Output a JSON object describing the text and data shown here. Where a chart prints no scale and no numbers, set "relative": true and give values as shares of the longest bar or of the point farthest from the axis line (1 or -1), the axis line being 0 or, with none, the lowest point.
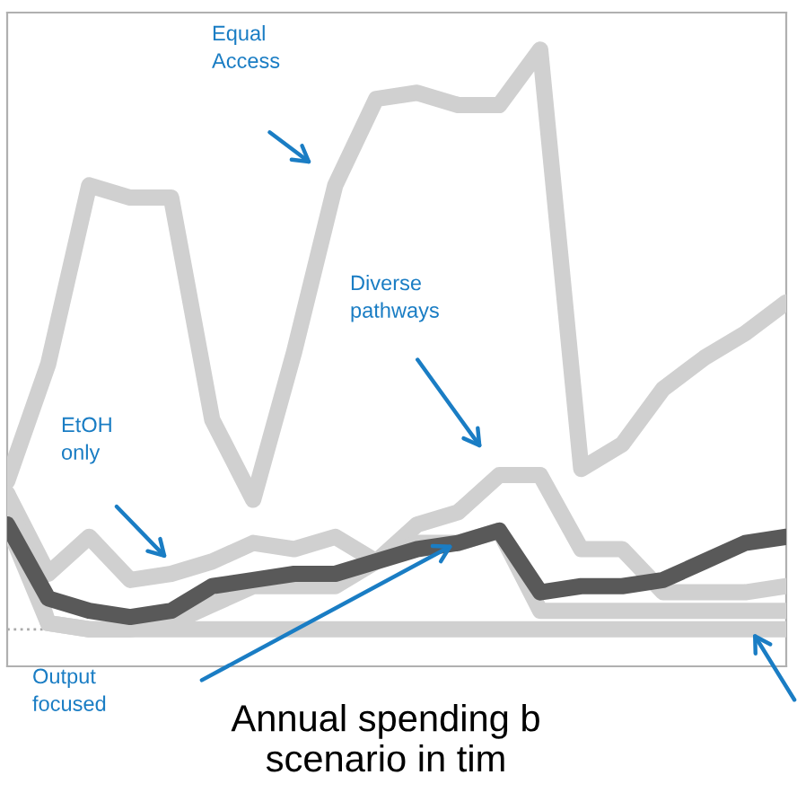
{
  "chart_data": {
    "type": "line",
    "relative": true,
    "title": "Annual spending b\nscenario in tim",
    "categories": [
      null,
      null,
      null,
      null,
      null,
      null,
      null,
      null,
      null,
      null,
      null,
      null,
      null,
      null,
      null,
      null,
      null,
      null,
      null,
      null
    ],
    "series": [
      {
        "color": "#d0d0d0",
        "values": [
          0.3,
          0.49,
          0.78,
          0.76,
          0.76,
          0.4,
          0.27,
          0.51,
          0.78,
          0.92,
          0.93,
          0.91,
          0.91,
          1.0,
          0.32,
          0.36,
          0.45,
          0.5,
          0.54,
          0.59
        ]
      },
      {
        "color": "#d0d0d0",
        "values": [
          0.28,
          0.15,
          0.21,
          0.14,
          0.15,
          0.17,
          0.2,
          0.19,
          0.21,
          0.17,
          0.23,
          0.25,
          0.31,
          0.31,
          0.19,
          0.19,
          0.12,
          0.12,
          0.12,
          0.13
        ]
      },
      {
        "color": "#d0d0d0",
        "values": [
          0.23,
          0.07,
          0.06,
          0.06,
          0.07,
          0.1,
          0.13,
          0.13,
          0.13,
          0.17,
          0.2,
          0.2,
          0.22,
          0.09,
          0.09,
          0.09,
          0.09,
          0.09,
          0.09,
          0.09
        ]
      },
      {
        "color": "#d0d0d0",
        "values": [
          0.28,
          0.07,
          0.06,
          0.06,
          0.06,
          0.06,
          0.06,
          0.06,
          0.06,
          0.06,
          0.06,
          0.06,
          0.06,
          0.06,
          0.06,
          0.06,
          0.06,
          0.06,
          0.06,
          0.06
        ]
      },
      {
        "color": "#595959",
        "values": [
          0.23,
          0.11,
          0.09,
          0.08,
          0.09,
          0.13,
          0.14,
          0.15,
          0.15,
          0.17,
          0.19,
          0.2,
          0.22,
          0.12,
          0.13,
          0.13,
          0.14,
          0.17,
          0.2,
          0.21
        ]
      }
    ],
    "ref_lines": [
      {
        "axis": "y",
        "value": 0.06,
        "color": "#aaaaaa",
        "line_style": "dotted"
      }
    ],
    "annotations": [
      "Equal\nAccess",
      "Diverse\npathways",
      "EtOH\nonly",
      "Output\nfocused"
    ],
    "grid": false,
    "marker": "none",
    "line_style": "solid"
  }
}
